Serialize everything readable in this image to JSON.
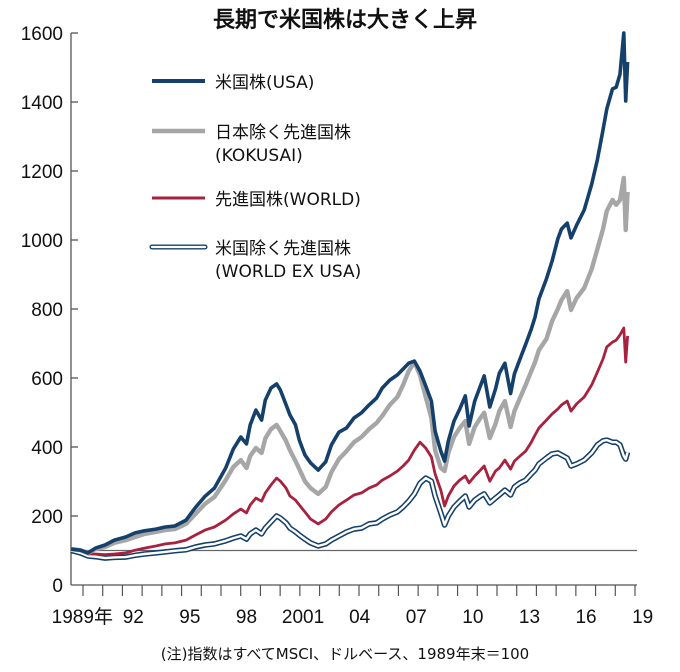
{
  "chart_data": {
    "type": "line",
    "title": "長期で米国株は大きく上昇",
    "xlabel": "",
    "ylabel": "",
    "ylim": [
      0,
      1600
    ],
    "xlim": [
      1989.0,
      2019.0
    ],
    "grid": false,
    "legend_position": "top-left",
    "y_ticks": [
      0,
      200,
      400,
      600,
      800,
      1000,
      1200,
      1400,
      1600
    ],
    "y_tick_labels": [
      "0",
      "200",
      "400",
      "600",
      "800",
      "1000",
      "1200",
      "1400",
      "1600"
    ],
    "x_tick_labels": [
      {
        "year": 1989.6,
        "label": "1989年"
      },
      {
        "year": 1992.3,
        "label": "92"
      },
      {
        "year": 1995.3,
        "label": "95"
      },
      {
        "year": 1998.3,
        "label": "98"
      },
      {
        "year": 2001.3,
        "label": "2001"
      },
      {
        "year": 2004.3,
        "label": "04"
      },
      {
        "year": 2007.3,
        "label": "07"
      },
      {
        "year": 2010.3,
        "label": "10"
      },
      {
        "year": 2013.3,
        "label": "13"
      },
      {
        "year": 2016.3,
        "label": "16"
      },
      {
        "year": 2019.3,
        "label": "19"
      }
    ],
    "reference_line": 100,
    "note": "(注)指数はすべてMSCI、ドルベース、1989年末＝100",
    "series": [
      {
        "name": "米国株(USA)",
        "color": "#15406b",
        "style": "solid",
        "x": [
          1989.0,
          1989.5,
          1989.9,
          1990.3,
          1990.8,
          1991.3,
          1991.9,
          1992.4,
          1992.9,
          1993.5,
          1994.0,
          1994.5,
          1995.1,
          1995.6,
          1996.1,
          1996.6,
          1997.2,
          1997.6,
          1998.0,
          1998.3,
          1998.5,
          1998.8,
          1999.1,
          1999.3,
          1999.6,
          1999.9,
          2000.1,
          2000.4,
          2000.6,
          2000.9,
          2001.1,
          2001.4,
          2001.7,
          2002.1,
          2002.5,
          2002.8,
          2003.2,
          2003.6,
          2004.0,
          2004.4,
          2004.8,
          2005.2,
          2005.5,
          2005.9,
          2006.3,
          2006.6,
          2006.9,
          2007.2,
          2007.5,
          2007.8,
          2008.1,
          2008.3,
          2008.6,
          2008.8,
          2009.0,
          2009.3,
          2009.6,
          2009.9,
          2010.1,
          2010.4,
          2010.7,
          2010.9,
          2011.2,
          2011.5,
          2011.7,
          2012.0,
          2012.3,
          2012.5,
          2012.8,
          2013.1,
          2013.4,
          2013.6,
          2013.8,
          2014.2,
          2014.5,
          2014.8,
          2015.0,
          2015.3,
          2015.5,
          2015.8,
          2016.2,
          2016.6,
          2016.9,
          2017.2,
          2017.4,
          2017.7,
          2017.9,
          2018.1,
          2018.3,
          2018.4,
          2018.5
        ],
        "values": [
          104,
          101,
          93,
          107,
          116,
          130,
          139,
          151,
          157,
          162,
          168,
          171,
          188,
          225,
          257,
          281,
          339,
          394,
          429,
          409,
          464,
          507,
          478,
          536,
          571,
          583,
          565,
          522,
          493,
          464,
          420,
          377,
          354,
          333,
          357,
          406,
          443,
          455,
          484,
          499,
          522,
          542,
          571,
          594,
          609,
          626,
          643,
          649,
          620,
          577,
          533,
          446,
          388,
          359,
          417,
          475,
          510,
          548,
          461,
          533,
          577,
          606,
          516,
          568,
          614,
          643,
          555,
          612,
          655,
          698,
          742,
          777,
          829,
          887,
          939,
          1003,
          1032,
          1049,
          1006,
          1043,
          1087,
          1162,
          1233,
          1319,
          1380,
          1438,
          1443,
          1481,
          1600,
          1403,
          1516
        ]
      },
      {
        "name": "日本除く先進国株(KOKUSAI)",
        "color": "#a6a6a6",
        "style": "solid",
        "x": [
          1989.0,
          1989.5,
          1989.9,
          1990.3,
          1990.8,
          1991.3,
          1991.9,
          1992.4,
          1992.9,
          1993.5,
          1994.0,
          1994.5,
          1995.1,
          1995.6,
          1996.1,
          1996.6,
          1997.2,
          1997.6,
          1998.0,
          1998.3,
          1998.5,
          1998.8,
          1999.1,
          1999.3,
          1999.6,
          1999.9,
          2000.1,
          2000.4,
          2000.6,
          2000.9,
          2001.1,
          2001.4,
          2001.7,
          2002.1,
          2002.5,
          2002.8,
          2003.2,
          2003.6,
          2004.0,
          2004.4,
          2004.8,
          2005.2,
          2005.5,
          2005.9,
          2006.3,
          2006.6,
          2006.9,
          2007.2,
          2007.5,
          2007.8,
          2008.1,
          2008.3,
          2008.6,
          2008.8,
          2009.0,
          2009.3,
          2009.6,
          2009.9,
          2010.1,
          2010.4,
          2010.7,
          2010.9,
          2011.2,
          2011.5,
          2011.7,
          2012.0,
          2012.3,
          2012.5,
          2012.8,
          2013.1,
          2013.4,
          2013.6,
          2013.8,
          2014.2,
          2014.5,
          2014.8,
          2015.0,
          2015.3,
          2015.5,
          2015.8,
          2016.2,
          2016.6,
          2016.9,
          2017.2,
          2017.4,
          2017.7,
          2017.9,
          2018.1,
          2018.3,
          2018.4,
          2018.5
        ],
        "values": [
          104,
          101,
          93,
          104,
          110,
          122,
          130,
          139,
          148,
          154,
          159,
          162,
          177,
          206,
          235,
          255,
          304,
          342,
          362,
          339,
          374,
          397,
          383,
          425,
          452,
          464,
          446,
          417,
          391,
          359,
          336,
          301,
          281,
          264,
          284,
          327,
          365,
          388,
          414,
          429,
          452,
          470,
          490,
          522,
          545,
          580,
          620,
          646,
          608,
          545,
          484,
          391,
          339,
          330,
          383,
          429,
          455,
          475,
          409,
          458,
          484,
          499,
          426,
          467,
          504,
          533,
          458,
          504,
          542,
          580,
          620,
          646,
          681,
          713,
          765,
          800,
          826,
          852,
          797,
          832,
          861,
          916,
          974,
          1032,
          1084,
          1116,
          1102,
          1116,
          1180,
          1029,
          1139
        ]
      },
      {
        "name": "先進国株(WORLD)",
        "color": "#a8213f",
        "style": "solid",
        "x": [
          1989.0,
          1989.5,
          1989.9,
          1990.3,
          1990.8,
          1991.3,
          1991.9,
          1992.4,
          1992.9,
          1993.5,
          1994.0,
          1994.5,
          1995.1,
          1995.6,
          1996.1,
          1996.6,
          1997.2,
          1997.6,
          1998.0,
          1998.3,
          1998.5,
          1998.8,
          1999.1,
          1999.3,
          1999.6,
          1999.9,
          2000.1,
          2000.4,
          2000.6,
          2000.9,
          2001.1,
          2001.4,
          2001.7,
          2002.1,
          2002.5,
          2002.8,
          2003.2,
          2003.6,
          2004.0,
          2004.4,
          2004.8,
          2005.2,
          2005.5,
          2005.9,
          2006.3,
          2006.6,
          2006.9,
          2007.2,
          2007.5,
          2007.8,
          2008.1,
          2008.3,
          2008.6,
          2008.8,
          2009.0,
          2009.3,
          2009.6,
          2009.9,
          2010.1,
          2010.4,
          2010.7,
          2010.9,
          2011.2,
          2011.5,
          2011.7,
          2012.0,
          2012.3,
          2012.5,
          2012.8,
          2013.1,
          2013.4,
          2013.6,
          2013.8,
          2014.2,
          2014.5,
          2014.8,
          2015.0,
          2015.3,
          2015.5,
          2015.8,
          2016.2,
          2016.6,
          2016.9,
          2017.2,
          2017.4,
          2017.7,
          2017.9,
          2018.1,
          2018.3,
          2018.4,
          2018.5
        ],
        "values": [
          104,
          99,
          90,
          90,
          88,
          90,
          93,
          101,
          107,
          113,
          119,
          122,
          130,
          145,
          159,
          168,
          188,
          206,
          220,
          209,
          232,
          252,
          243,
          267,
          290,
          310,
          301,
          281,
          258,
          246,
          232,
          212,
          191,
          177,
          191,
          212,
          232,
          246,
          261,
          267,
          281,
          290,
          304,
          316,
          330,
          345,
          362,
          391,
          414,
          397,
          371,
          322,
          275,
          229,
          258,
          287,
          304,
          316,
          296,
          316,
          333,
          345,
          301,
          330,
          339,
          362,
          336,
          359,
          374,
          388,
          414,
          435,
          455,
          478,
          496,
          510,
          522,
          533,
          504,
          525,
          545,
          580,
          617,
          655,
          690,
          704,
          710,
          725,
          745,
          646,
          722
        ]
      },
      {
        "name": "米国除く先進国株(WORLD EX USA)",
        "color": "#15406b",
        "style": "double",
        "x": [
          1989.0,
          1989.5,
          1989.9,
          1990.3,
          1990.8,
          1991.3,
          1991.9,
          1992.4,
          1992.9,
          1993.5,
          1994.0,
          1994.5,
          1995.1,
          1995.6,
          1996.1,
          1996.6,
          1997.2,
          1997.6,
          1998.0,
          1998.3,
          1998.5,
          1998.8,
          1999.1,
          1999.3,
          1999.6,
          1999.9,
          2000.1,
          2000.4,
          2000.6,
          2000.9,
          2001.1,
          2001.4,
          2001.7,
          2002.1,
          2002.5,
          2002.8,
          2003.2,
          2003.6,
          2004.0,
          2004.4,
          2004.8,
          2005.2,
          2005.5,
          2005.9,
          2006.3,
          2006.6,
          2006.9,
          2007.2,
          2007.5,
          2007.8,
          2008.1,
          2008.3,
          2008.6,
          2008.8,
          2009.0,
          2009.3,
          2009.6,
          2009.9,
          2010.1,
          2010.4,
          2010.7,
          2010.9,
          2011.2,
          2011.5,
          2011.7,
          2012.0,
          2012.3,
          2012.5,
          2012.8,
          2013.1,
          2013.4,
          2013.6,
          2013.8,
          2014.2,
          2014.5,
          2014.8,
          2015.0,
          2015.3,
          2015.5,
          2015.8,
          2016.2,
          2016.6,
          2016.9,
          2017.2,
          2017.4,
          2017.7,
          2017.9,
          2018.1,
          2018.3,
          2018.4,
          2018.5
        ],
        "values": [
          100,
          93,
          84,
          82,
          78,
          80,
          81,
          86,
          90,
          93,
          96,
          99,
          102,
          110,
          116,
          119,
          128,
          136,
          142,
          133,
          148,
          159,
          148,
          165,
          183,
          200,
          194,
          180,
          165,
          154,
          145,
          133,
          122,
          113,
          119,
          130,
          142,
          154,
          162,
          165,
          177,
          180,
          191,
          203,
          212,
          226,
          243,
          264,
          295,
          310,
          301,
          258,
          209,
          174,
          200,
          226,
          243,
          258,
          226,
          246,
          258,
          264,
          238,
          252,
          261,
          275,
          261,
          284,
          296,
          304,
          322,
          333,
          351,
          368,
          380,
          383,
          377,
          368,
          345,
          351,
          362,
          383,
          406,
          418,
          420,
          414,
          414,
          406,
          374,
          365,
          385
        ]
      }
    ]
  },
  "legend": [
    {
      "label_line1": "米国株(USA)",
      "label_line2": ""
    },
    {
      "label_line1": "日本除く先進国株",
      "label_line2": "(KOKUSAI)"
    },
    {
      "label_line1": "先進国株(WORLD)",
      "label_line2": ""
    },
    {
      "label_line1": "米国除く先進国株",
      "label_line2": "(WORLD EX USA)"
    }
  ]
}
